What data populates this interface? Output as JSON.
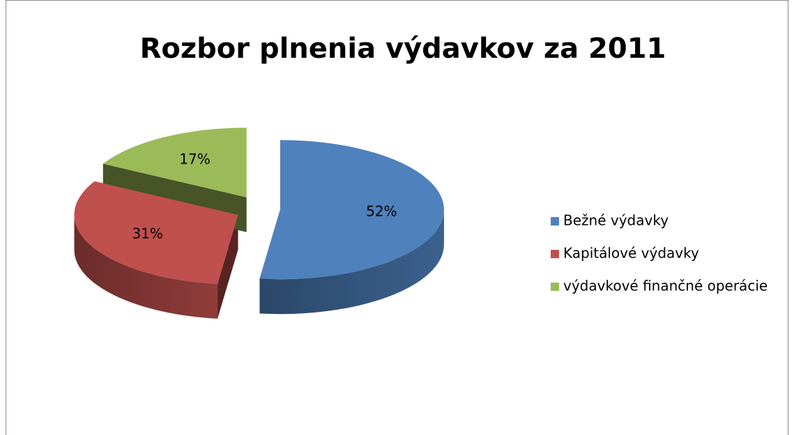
{
  "chart_data": {
    "type": "pie",
    "title": "Rozbor plnenia výdavkov za 2011",
    "categories": [
      "Bežné výdavky",
      "Kapitálové výdavky",
      "výdavkové finančné operácie"
    ],
    "values": [
      52,
      31,
      17
    ],
    "value_labels": [
      "52%",
      "31%",
      "17%"
    ],
    "colors": [
      "#4f81bd",
      "#c0504d",
      "#9bbb59"
    ],
    "legend": "right"
  }
}
